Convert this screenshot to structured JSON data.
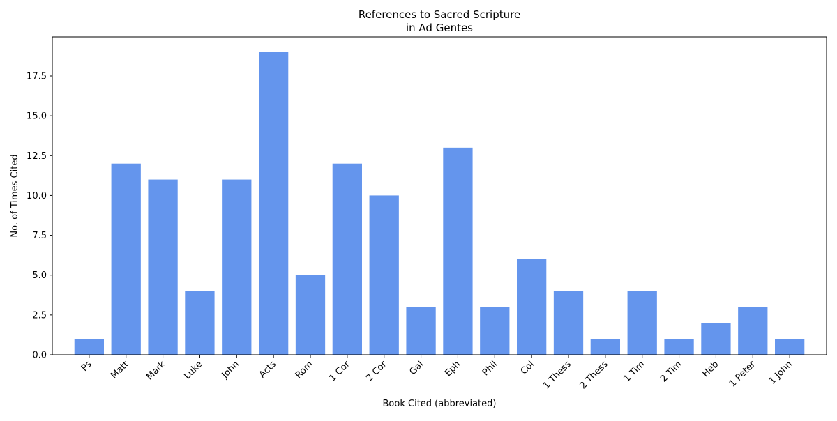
{
  "chart_data": {
    "type": "bar",
    "title_line1": "References to Sacred Scripture",
    "title_line2": "in Ad Gentes",
    "xlabel": "Book Cited (abbreviated)",
    "ylabel": "No. of Times Cited",
    "categories": [
      "Ps",
      "Matt",
      "Mark",
      "Luke",
      "John",
      "Acts",
      "Rom",
      "1 Cor",
      "2 Cor",
      "Gal",
      "Eph",
      "Phil",
      "Col",
      "1 Thess",
      "2 Thess",
      "1 Tim",
      "2 Tim",
      "Heb",
      "1 Peter",
      "1 John"
    ],
    "values": [
      1,
      12,
      11,
      4,
      11,
      19,
      5,
      12,
      10,
      3,
      13,
      3,
      6,
      4,
      1,
      4,
      1,
      2,
      3,
      1
    ],
    "ylim": [
      0,
      19.95
    ],
    "yticks": [
      0.0,
      2.5,
      5.0,
      7.5,
      10.0,
      12.5,
      15.0,
      17.5
    ],
    "ytick_labels": [
      "0.0",
      "2.5",
      "5.0",
      "7.5",
      "10.0",
      "12.5",
      "15.0",
      "17.5"
    ],
    "bar_color": "#6495ED",
    "grid": false,
    "legend": "none"
  }
}
